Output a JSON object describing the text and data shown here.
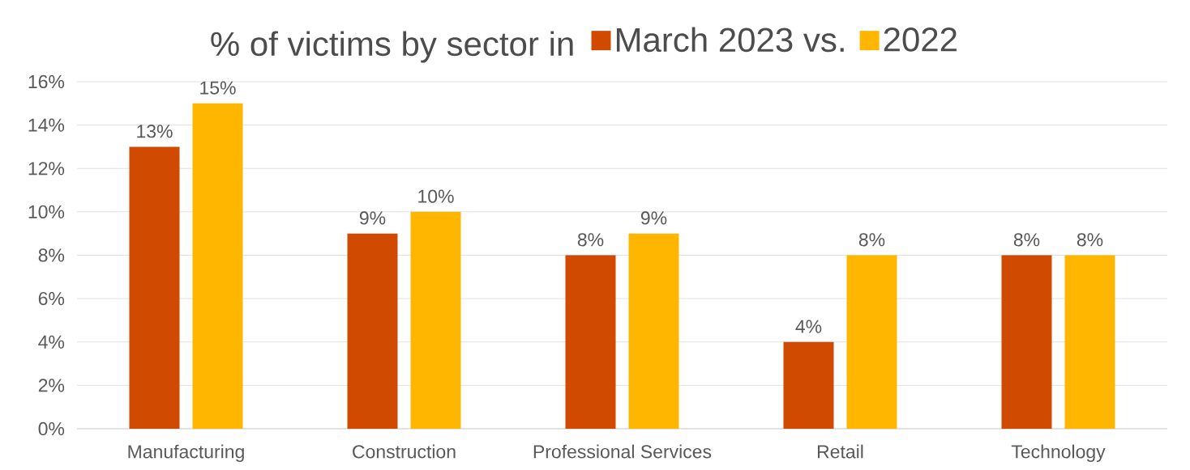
{
  "chart_data": {
    "type": "bar",
    "title": "% of victims by sector in",
    "categories": [
      "Manufacturing",
      "Construction",
      "Professional Services",
      "Retail",
      "Technology"
    ],
    "series": [
      {
        "name": "March 2023 vs.",
        "color": "#d04a02",
        "values": [
          13,
          9,
          8,
          4,
          8
        ],
        "value_labels": [
          "13%",
          "9%",
          "8%",
          "4%",
          "8%"
        ]
      },
      {
        "name": "2022",
        "color": "#ffb600",
        "values": [
          15,
          10,
          9,
          8,
          8
        ],
        "value_labels": [
          "15%",
          "10%",
          "9%",
          "8%",
          "8%"
        ]
      }
    ],
    "ylim": [
      0,
      16
    ],
    "yticks": [
      {
        "value": 0,
        "label": "0%"
      },
      {
        "value": 2,
        "label": "2%"
      },
      {
        "value": 4,
        "label": "4%"
      },
      {
        "value": 6,
        "label": "6%"
      },
      {
        "value": 8,
        "label": "8%"
      },
      {
        "value": 10,
        "label": "10%"
      },
      {
        "value": 12,
        "label": "12%"
      },
      {
        "value": 14,
        "label": "14%"
      },
      {
        "value": 16,
        "label": "16%"
      }
    ],
    "grid": "y",
    "legend": "top"
  }
}
